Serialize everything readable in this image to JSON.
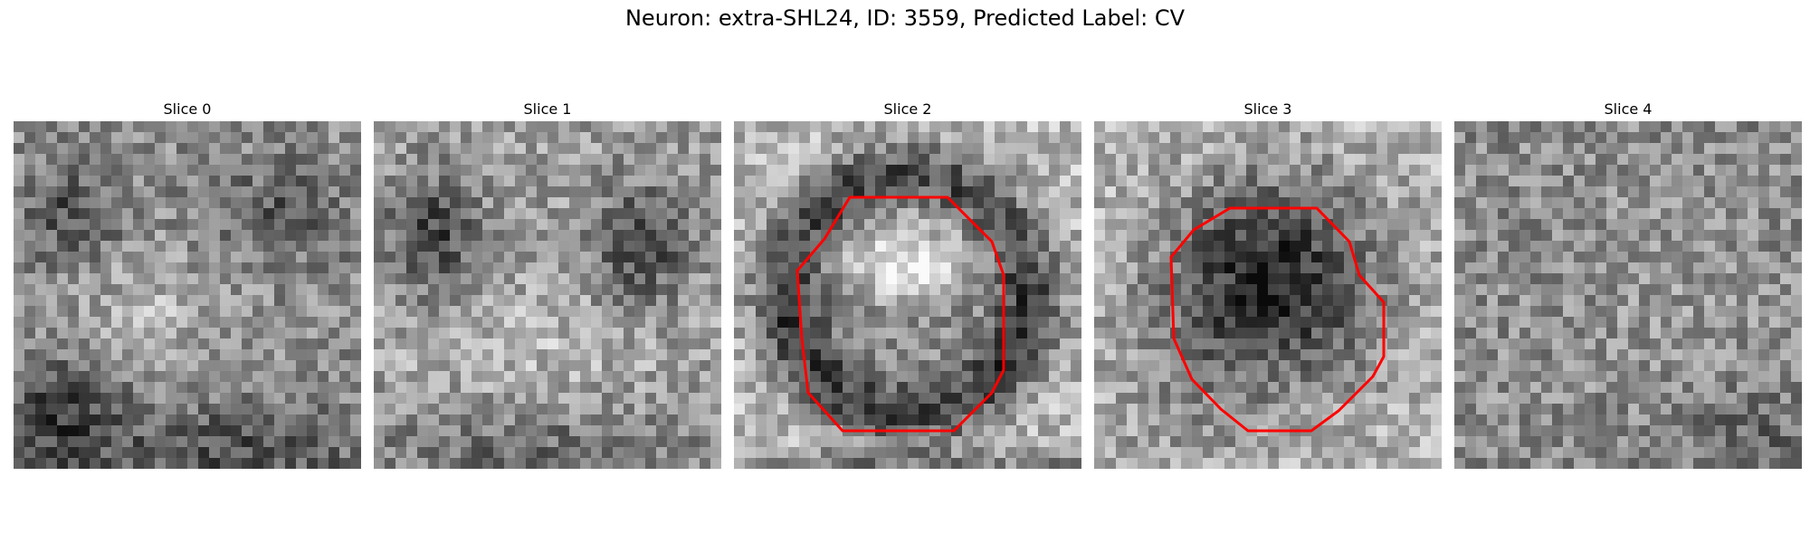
{
  "figure": {
    "title": "Neuron: extra-SHL24, ID: 3559, Predicted Label: CV"
  },
  "panels": [
    {
      "title": "Slice 0",
      "has_contour": false,
      "seed": 11,
      "pattern": "mottled"
    },
    {
      "title": "Slice 1",
      "has_contour": false,
      "seed": 23,
      "pattern": "blobs"
    },
    {
      "title": "Slice 2",
      "has_contour": true,
      "seed": 37,
      "pattern": "ring"
    },
    {
      "title": "Slice 3",
      "has_contour": true,
      "seed": 51,
      "pattern": "dark-disk"
    },
    {
      "title": "Slice 4",
      "has_contour": false,
      "seed": 67,
      "pattern": "noise"
    }
  ],
  "colors": {
    "contour": "#ff0000",
    "colormap": "gray"
  }
}
